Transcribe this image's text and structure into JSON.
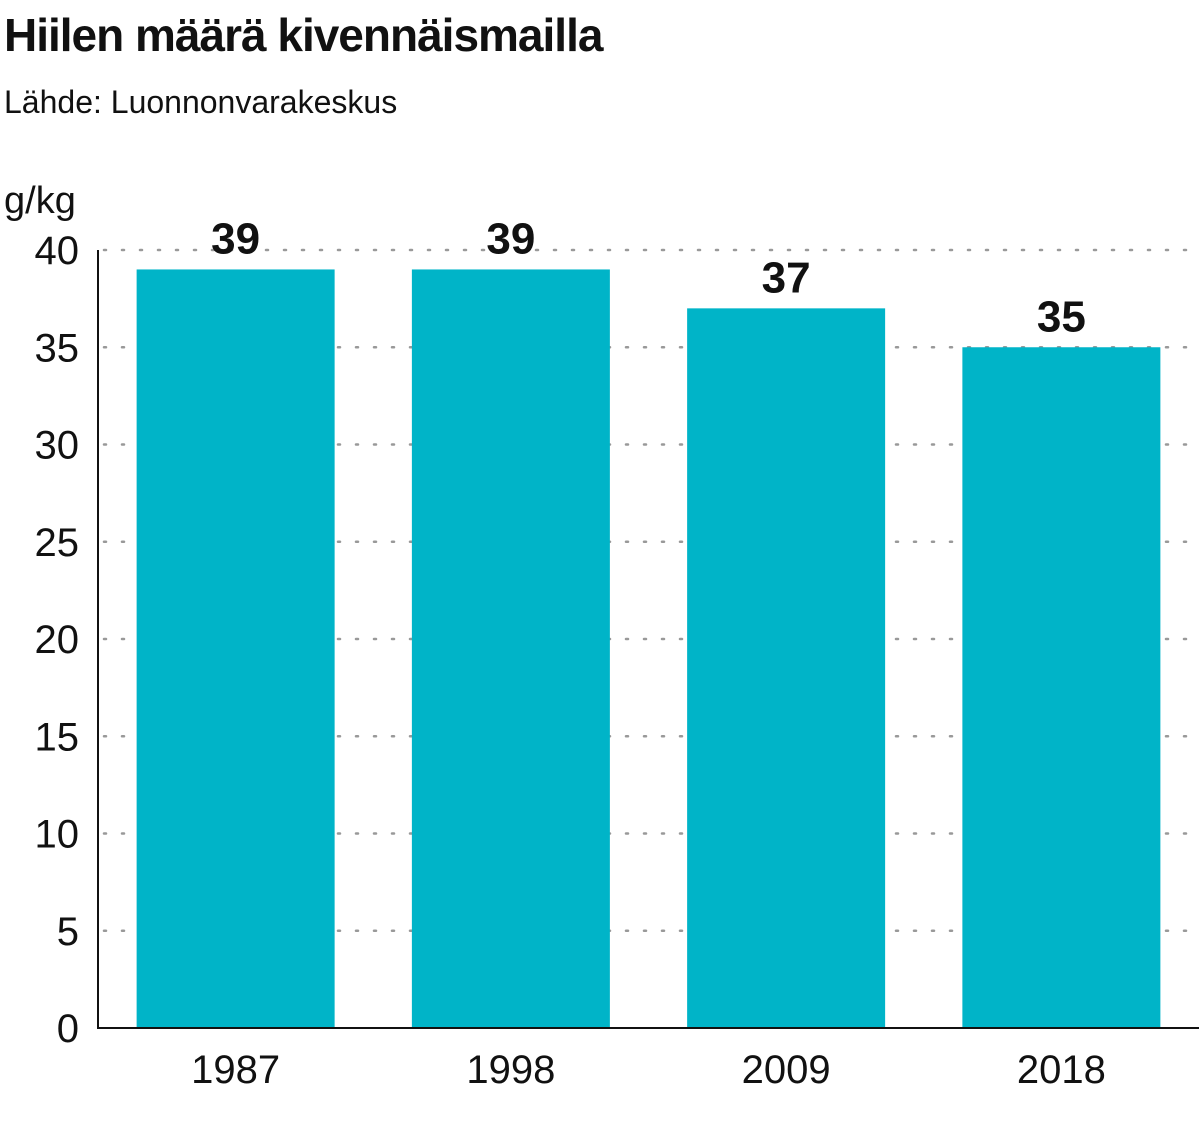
{
  "title": "Hiilen määrä kivennäismailla",
  "subtitle": "Lähde: Luonnonvarakeskus",
  "chart_data": {
    "type": "bar",
    "title": "Hiilen määrä kivennäismailla",
    "subtitle": "Lähde: Luonnonvarakeskus",
    "ylabel": "g/kg",
    "xlabel": "",
    "categories": [
      "1987",
      "1998",
      "2009",
      "2018"
    ],
    "values": [
      39,
      39,
      37,
      35
    ],
    "data_labels": [
      "39",
      "39",
      "37",
      "35"
    ],
    "ylim": [
      0,
      40
    ],
    "yticks": [
      0,
      5,
      10,
      15,
      20,
      25,
      30,
      35,
      40
    ],
    "ytick_labels": [
      "0",
      "5",
      "10",
      "15",
      "20",
      "25",
      "30",
      "35",
      "40"
    ],
    "grid": "horizontal-dotted",
    "legend": "none",
    "bar_color": "#00b4c8",
    "grid_color": "#999999",
    "axis_color": "#111111"
  }
}
